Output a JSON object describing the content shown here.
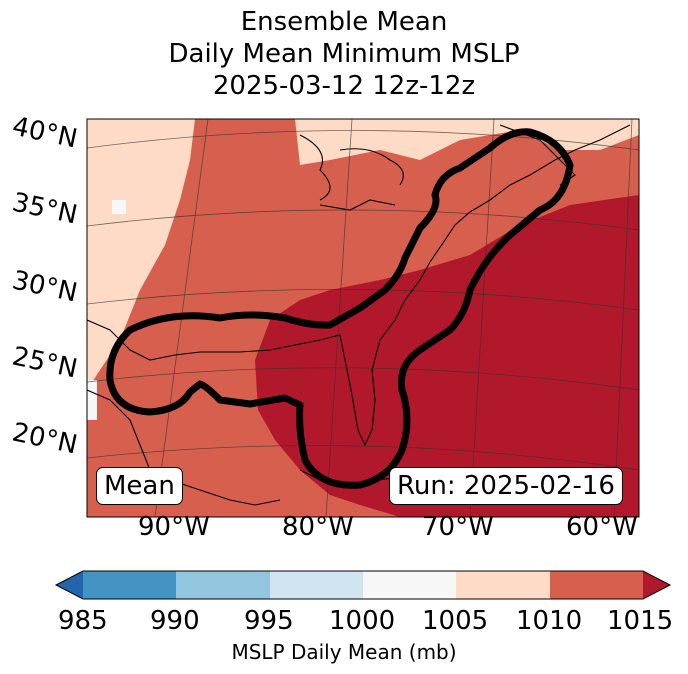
{
  "title": {
    "line1": "Ensemble Mean",
    "line2": "Daily Mean Minimum MSLP",
    "line3": "2025-03-12 12z-12z"
  },
  "map": {
    "lat_labels": [
      "40°N",
      "35°N",
      "30°N",
      "25°N",
      "20°N"
    ],
    "lon_labels": [
      "90°W",
      "80°W",
      "70°W",
      "60°W"
    ],
    "mean_label": "Mean",
    "run_label": "Run: 2025-02-16",
    "region": "Eastern United States, Gulf of Mexico and western Atlantic",
    "contour_description": "thick black outline around Gulf coast, Florida and US east coast"
  },
  "colorbar": {
    "ticks": [
      "985",
      "990",
      "995",
      "1000",
      "1005",
      "1010",
      "1015"
    ],
    "label": "MSLP Daily Mean (mb)",
    "colors": [
      "#2166ac",
      "#4393c3",
      "#92c5de",
      "#d1e5f0",
      "#f7f7f7",
      "#fddbc7",
      "#d6604d",
      "#b2182b"
    ]
  }
}
